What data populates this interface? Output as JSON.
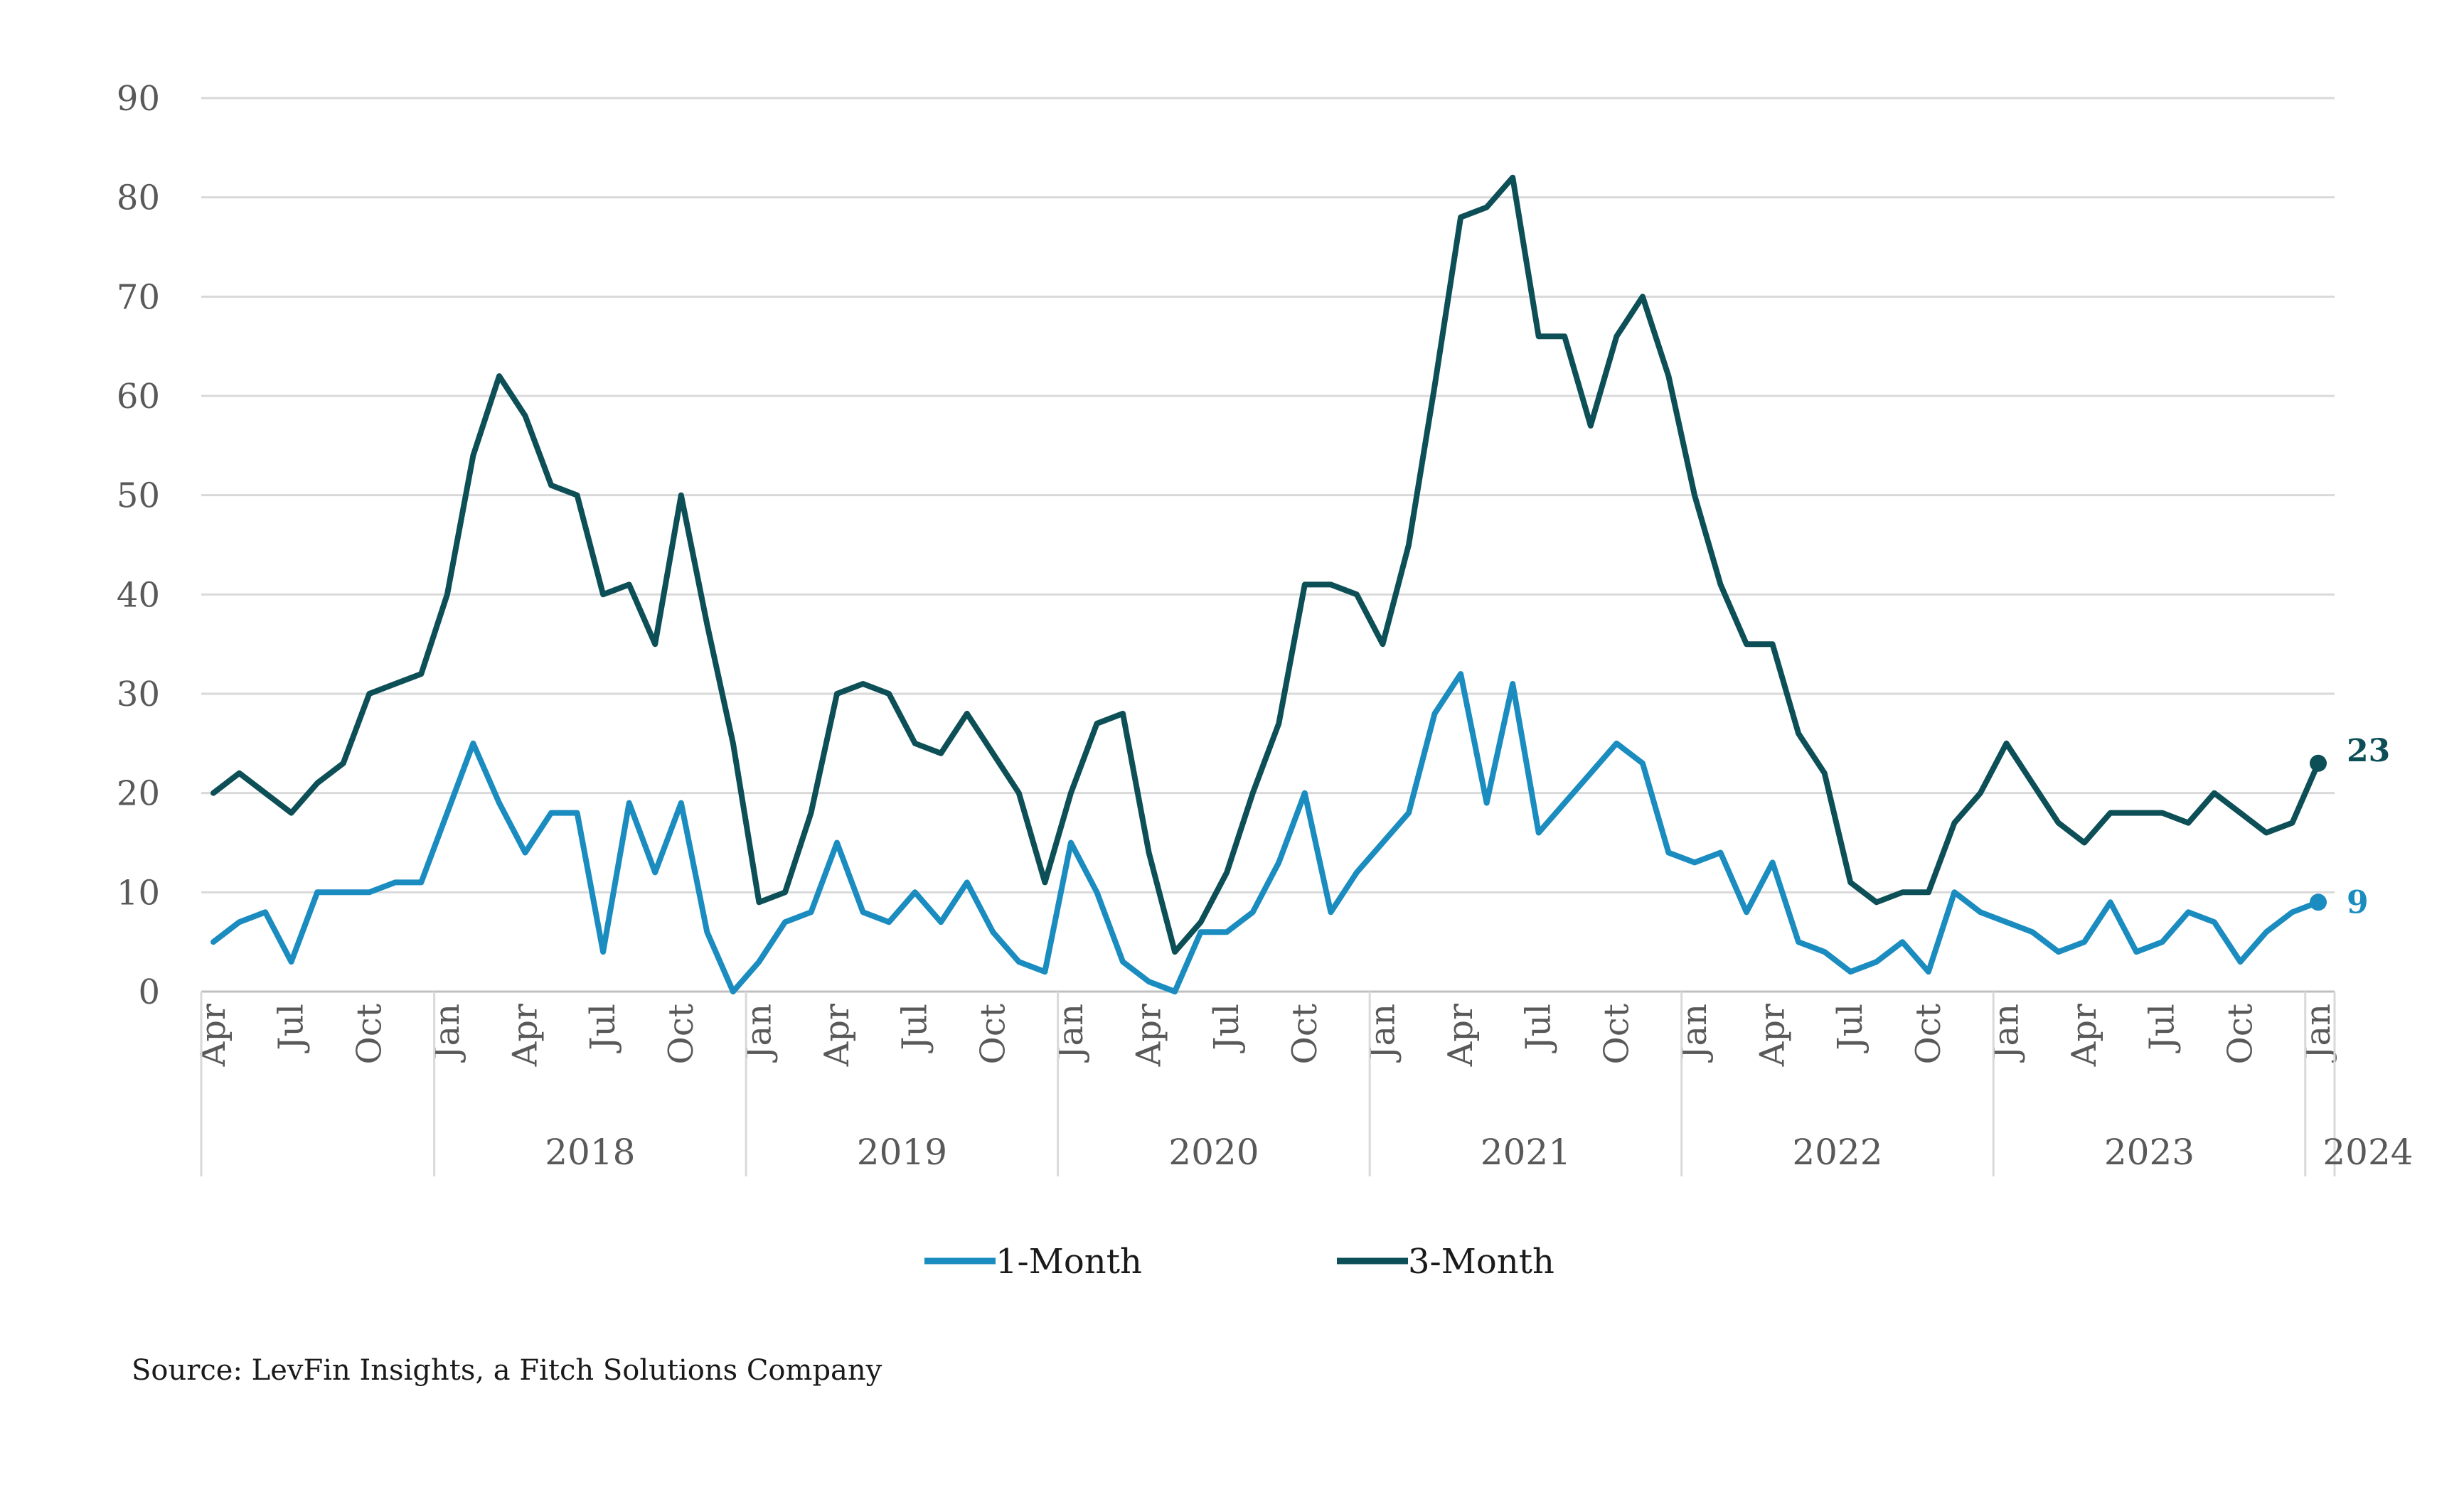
{
  "chart_data": {
    "type": "line",
    "x_start": "2017-04",
    "x_tick_labels": [
      "Apr",
      "Jul",
      "Oct",
      "Jan",
      "Apr",
      "Jul",
      "Oct",
      "Jan",
      "Apr",
      "Jul",
      "Oct",
      "Jan",
      "Apr",
      "Jul",
      "Oct",
      "Jan",
      "Apr",
      "Jul",
      "Oct",
      "Jan",
      "Apr",
      "Jul",
      "Oct",
      "Jan",
      "Apr",
      "Jul",
      "Oct",
      "Jan"
    ],
    "year_labels": [
      "2018",
      "2019",
      "2020",
      "2021",
      "2022",
      "2023",
      "2024"
    ],
    "ylim": [
      0,
      90
    ],
    "y_ticks": [
      0,
      10,
      20,
      30,
      40,
      50,
      60,
      70,
      80,
      90
    ],
    "grid": true,
    "legend_position": "bottom",
    "series": [
      {
        "name": "1-Month",
        "color": "#1A8CBF",
        "end_label": "9",
        "values": [
          5,
          7,
          8,
          3,
          10,
          10,
          10,
          11,
          11,
          18,
          25,
          19,
          14,
          18,
          18,
          4,
          19,
          12,
          19,
          6,
          0,
          3,
          7,
          8,
          15,
          8,
          7,
          10,
          7,
          11,
          6,
          3,
          2,
          15,
          10,
          3,
          1,
          0,
          6,
          6,
          8,
          13,
          20,
          8,
          12,
          15,
          18,
          28,
          32,
          19,
          31,
          16,
          19,
          22,
          25,
          23,
          14,
          13,
          14,
          8,
          13,
          5,
          4,
          2,
          3,
          5,
          2,
          10,
          8,
          7,
          6,
          4,
          5,
          9,
          4,
          5,
          8,
          7,
          3,
          6,
          8,
          9
        ]
      },
      {
        "name": "3-Month",
        "color": "#0D4F57",
        "end_label": "23",
        "values": [
          20,
          22,
          20,
          18,
          21,
          23,
          30,
          31,
          32,
          40,
          54,
          62,
          58,
          51,
          50,
          40,
          41,
          35,
          50,
          37,
          25,
          9,
          10,
          18,
          30,
          31,
          30,
          25,
          24,
          28,
          24,
          20,
          11,
          20,
          27,
          28,
          14,
          4,
          7,
          12,
          20,
          27,
          41,
          41,
          40,
          35,
          45,
          61,
          78,
          79,
          82,
          66,
          66,
          57,
          66,
          70,
          62,
          50,
          41,
          35,
          35,
          26,
          22,
          11,
          9,
          10,
          10,
          17,
          20,
          25,
          21,
          17,
          15,
          18,
          18,
          18,
          17,
          20,
          18,
          16,
          17,
          23
        ]
      }
    ]
  },
  "source": "Source: LevFin Insights, a Fitch Solutions Company"
}
